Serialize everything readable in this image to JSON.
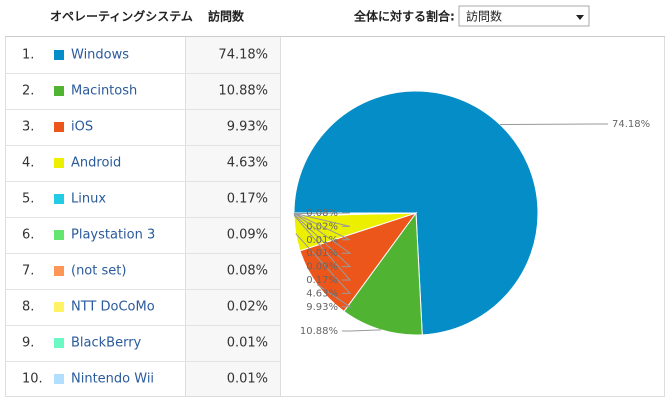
{
  "header": {
    "os_column": "オペレーティングシステム",
    "visits_column": "訪問数",
    "ratio_label": "全体に対する割合:",
    "dropdown": "訪問数"
  },
  "chart_data": {
    "type": "pie",
    "ranks": [
      "1.",
      "2.",
      "3.",
      "4.",
      "5.",
      "6.",
      "7.",
      "8.",
      "9.",
      "10."
    ],
    "categories": [
      "Windows",
      "Macintosh",
      "iOS",
      "Android",
      "Linux",
      "Playstation 3",
      "(not set)",
      "NTT DoCoMo",
      "BlackBerry",
      "Nintendo Wii"
    ],
    "values": [
      74.18,
      10.88,
      9.93,
      4.63,
      0.17,
      0.09,
      0.08,
      0.02,
      0.01,
      0.01
    ],
    "value_labels": [
      "74.18%",
      "10.88%",
      "9.93%",
      "4.63%",
      "0.17%",
      "0.09%",
      "0.08%",
      "0.02%",
      "0.01%",
      "0.01%"
    ],
    "colors": [
      "#058dc7",
      "#50b432",
      "#ed561b",
      "#edef00",
      "#24cbe5",
      "#64e572",
      "#ff9655",
      "#fff263",
      "#6af9c4",
      "#b2deff"
    ]
  }
}
